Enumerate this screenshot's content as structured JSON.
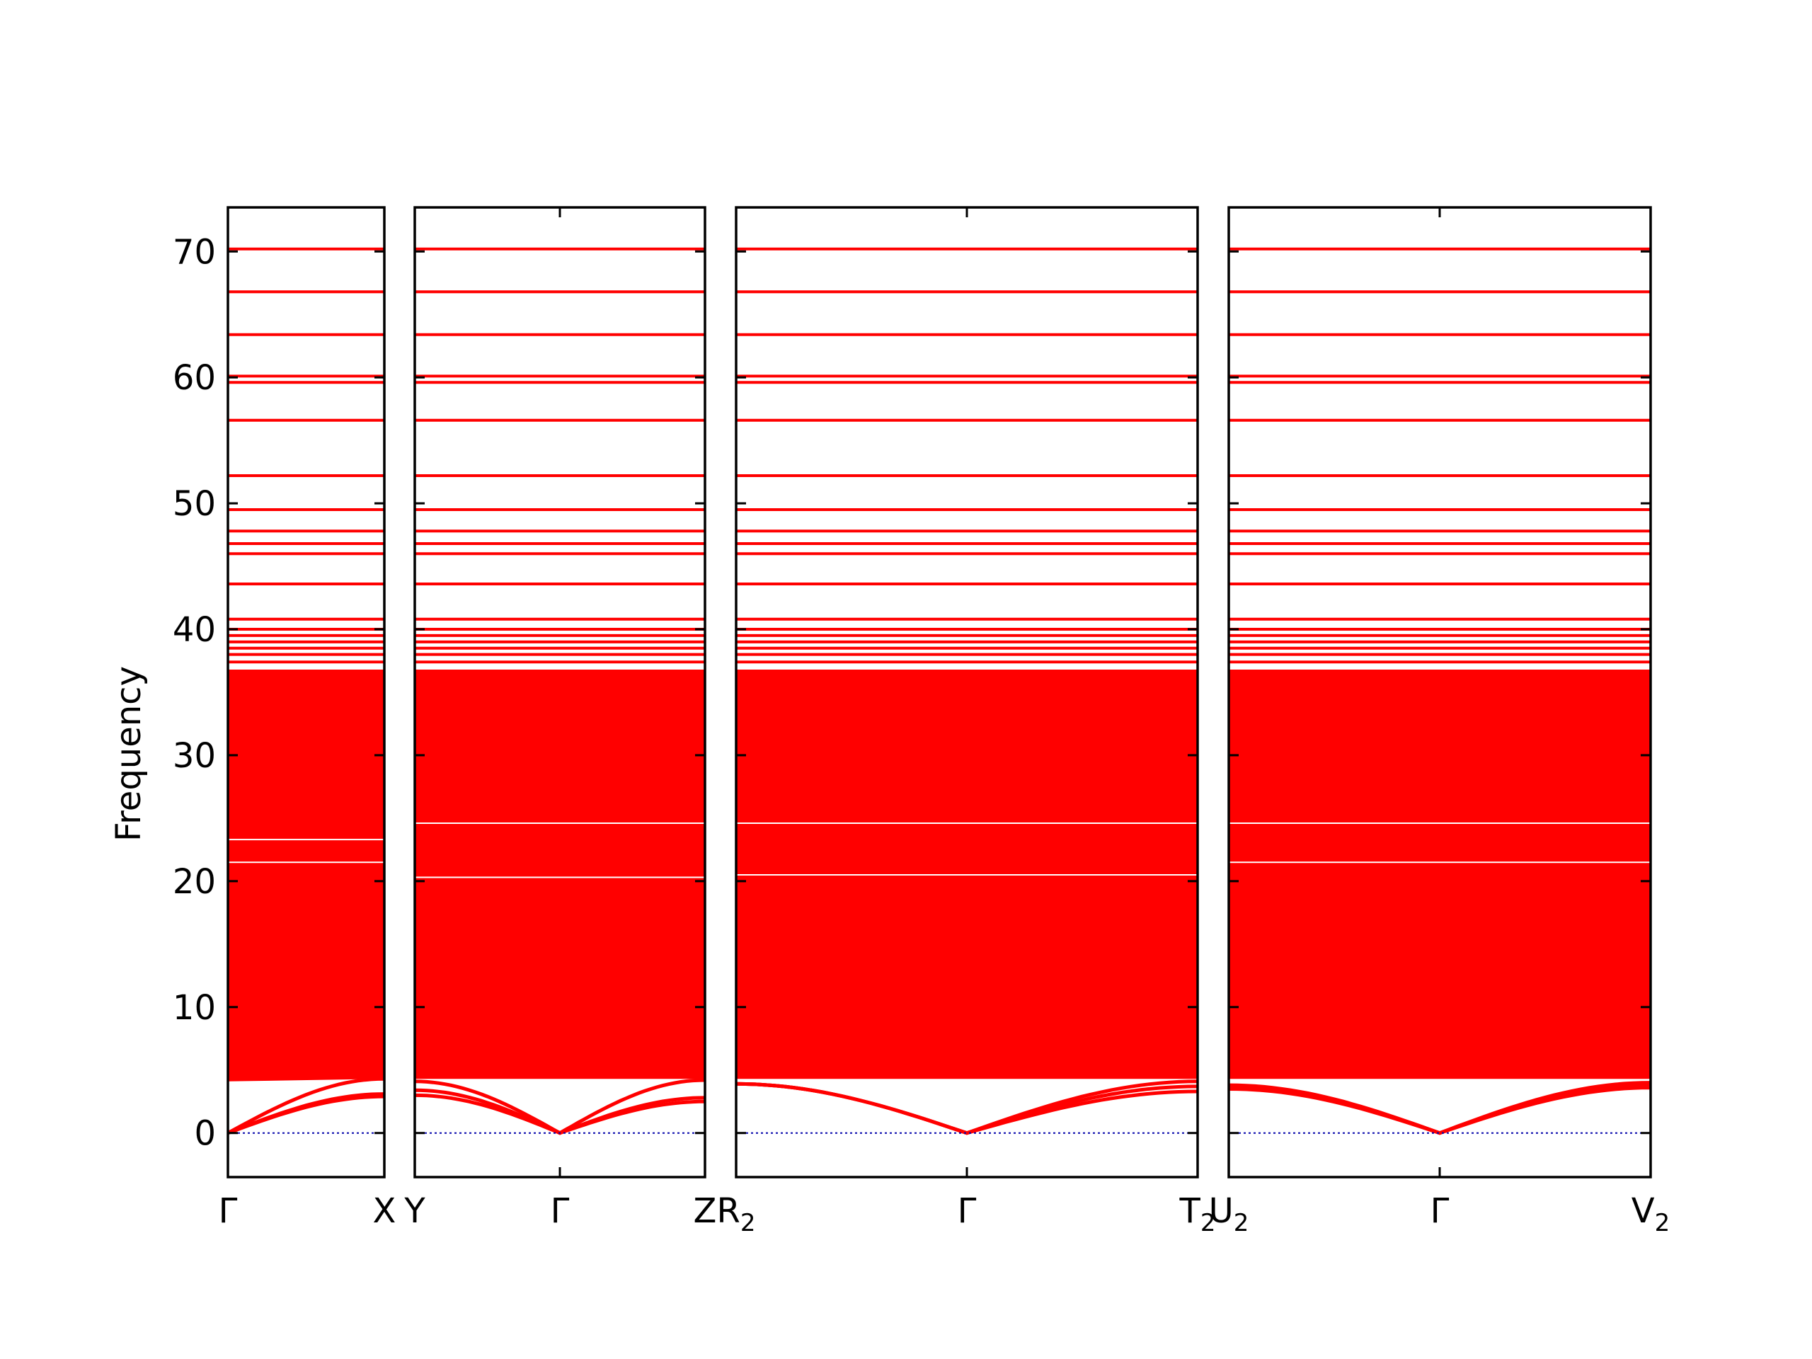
{
  "chart_data": {
    "type": "line",
    "ylabel": "Frequency",
    "ylim": [
      -3.5,
      73.5
    ],
    "yticks": [
      0,
      10,
      20,
      30,
      40,
      50,
      60,
      70
    ],
    "series_color": "#ff0000",
    "zero_line_color": "#0000aa",
    "flat_bands": [
      39.0,
      39.5,
      40.0,
      40.8,
      43.6,
      46.0,
      46.8,
      47.8,
      49.5,
      52.2,
      56.6,
      59.6,
      60.1,
      63.4,
      66.8,
      70.2
    ],
    "continuum": {
      "bottom_at_points": [
        4.1,
        4.3,
        4.3,
        4.3,
        4.2
      ],
      "top": 36.8,
      "extra_lines": [
        37.4,
        38.0,
        38.5
      ]
    },
    "panels": [
      {
        "labels": [
          {
            "main": "Γ",
            "sub": ""
          },
          {
            "main": "X",
            "sub": ""
          }
        ],
        "acoustic": [
          [
            0,
            3.1
          ],
          [
            0,
            2.9
          ],
          [
            0,
            4.3
          ]
        ],
        "gaps": [
          21.5,
          23.3
        ]
      },
      {
        "labels": [
          {
            "main": "Y",
            "sub": ""
          },
          {
            "main": "Γ",
            "sub": ""
          },
          {
            "main": "Z",
            "sub": ""
          }
        ],
        "acoustic": [
          [
            3.0,
            0,
            2.5
          ],
          [
            3.4,
            0,
            2.8
          ],
          [
            4.1,
            0,
            4.2
          ]
        ],
        "gaps": [
          20.3,
          24.6
        ]
      },
      {
        "labels": [
          {
            "main": "R",
            "sub": "2"
          },
          {
            "main": "Γ",
            "sub": ""
          },
          {
            "main": "T",
            "sub": "2"
          }
        ],
        "acoustic": [
          [
            3.9,
            0,
            3.3
          ],
          [
            3.9,
            0,
            3.7
          ],
          [
            3.9,
            0,
            4.1
          ]
        ],
        "gaps": [
          20.5,
          24.6
        ]
      },
      {
        "labels": [
          {
            "main": "U",
            "sub": "2"
          },
          {
            "main": "Γ",
            "sub": ""
          },
          {
            "main": "V",
            "sub": "2"
          }
        ],
        "acoustic": [
          [
            3.5,
            0,
            3.6
          ],
          [
            3.7,
            0,
            3.8
          ],
          [
            3.8,
            0,
            4.0
          ]
        ],
        "gaps": [
          21.5,
          24.6
        ]
      }
    ]
  }
}
